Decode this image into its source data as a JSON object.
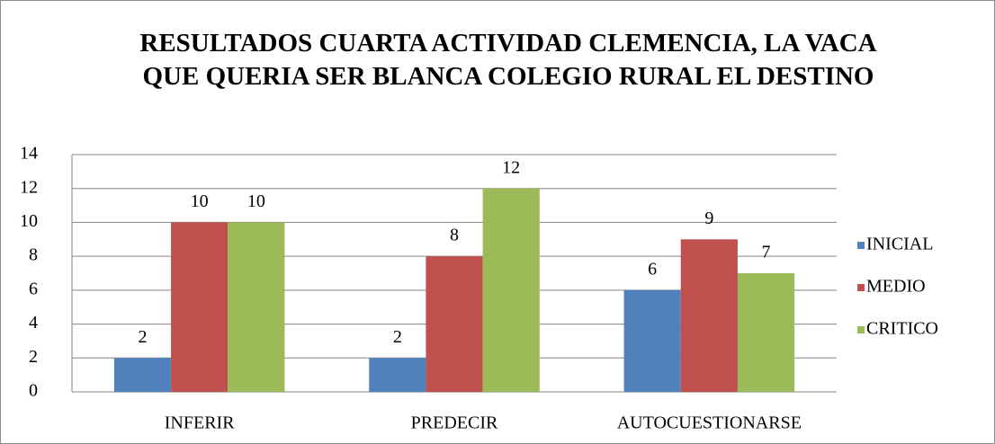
{
  "chart_data": {
    "type": "bar",
    "title": "RESULTADOS CUARTA ACTIVIDAD CLEMENCIA, LA VACA QUE QUERIA SER BLANCA COLEGIO RURAL EL DESTINO",
    "categories": [
      "INFERIR",
      "PREDECIR",
      "AUTOCUESTIONARSE"
    ],
    "series": [
      {
        "name": "INICIAL",
        "color": "#4f81bd",
        "values": [
          2,
          2,
          6
        ]
      },
      {
        "name": "MEDIO",
        "color": "#c0504d",
        "values": [
          10,
          8,
          9
        ]
      },
      {
        "name": "CRITICO",
        "color": "#9bbb59",
        "values": [
          10,
          12,
          7
        ]
      }
    ],
    "ylim": [
      0,
      14
    ],
    "yticks": [
      0,
      2,
      4,
      6,
      8,
      10,
      12,
      14
    ],
    "grid": true,
    "legend": "right"
  }
}
